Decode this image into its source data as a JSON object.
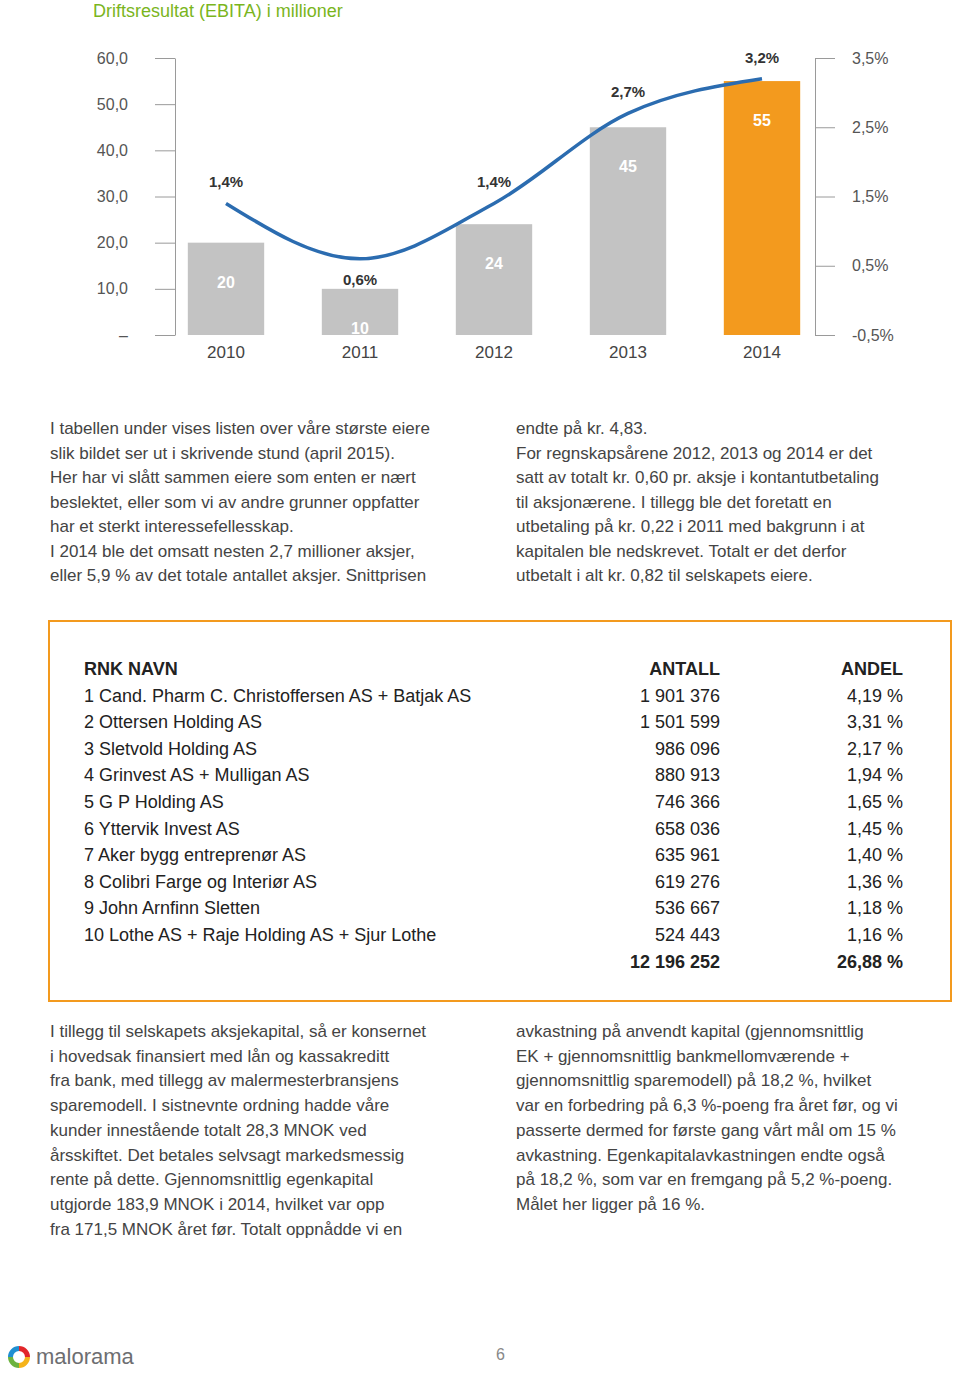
{
  "chart_data": {
    "type": "bar",
    "title": "Driftsresultat (EBITA) i millioner",
    "categories": [
      "2010",
      "2011",
      "2012",
      "2013",
      "2014"
    ],
    "values": [
      20,
      10,
      24,
      45,
      55
    ],
    "colors": [
      "#c3c3c3",
      "#c3c3c3",
      "#c3c3c3",
      "#c3c3c3",
      "#f39a1e"
    ],
    "data_labels": true,
    "ylim": [
      0,
      60
    ],
    "yticks": [
      {
        "value": 0,
        "label": "–"
      },
      {
        "value": 10,
        "label": "10,0"
      },
      {
        "value": 20,
        "label": "20,0"
      },
      {
        "value": 30,
        "label": "30,0"
      },
      {
        "value": 40,
        "label": "40,0"
      },
      {
        "value": 50,
        "label": "50,0"
      },
      {
        "value": 60,
        "label": "60,0"
      }
    ],
    "y2lim": [
      -0.5,
      3.5
    ],
    "y2ticks": [
      {
        "value": -0.5,
        "label": "-0,5%"
      },
      {
        "value": 0.5,
        "label": "0,5%"
      },
      {
        "value": 1.5,
        "label": "1,5%"
      },
      {
        "value": 2.5,
        "label": "2,5%"
      },
      {
        "value": 3.5,
        "label": "3,5%"
      }
    ],
    "series": [
      {
        "type": "line",
        "axis": "y2",
        "color": "#2b6cb0",
        "values": [
          1.4,
          0.6,
          1.4,
          2.7,
          3.2
        ],
        "value_labels": [
          "1,4%",
          "0,6%",
          "1,4%",
          "2,7%",
          "3,2%"
        ]
      }
    ]
  },
  "text": {
    "intro_left": [
      "I tabellen under vises listen over våre største eiere",
      "slik bildet ser ut i skrivende stund (april 2015).",
      "Her har vi slått sammen eiere som enten er nært",
      "beslektet, eller som vi av andre grunner oppfatter",
      "har et sterkt interessefellesskap.",
      "I 2014 ble det omsatt nesten 2,7 millioner aksjer,",
      "eller 5,9 % av det totale antallet aksjer. Snittprisen"
    ],
    "intro_right": [
      "endte på kr. 4,83.",
      "For regnskapsårene 2012, 2013 og 2014 er det",
      "satt av totalt kr. 0,60 pr. aksje i kontantutbetaling",
      "til aksjonærene. I tillegg ble det foretatt en",
      "utbetaling på kr. 0,22 i 2011 med bakgrunn i at",
      "kapitalen ble nedskrevet. Totalt er det derfor",
      "utbetalt i alt kr. 0,82 til selskapets eiere."
    ],
    "body_left": [
      "I tillegg til selskapets aksjekapital, så er konsernet",
      "i hovedsak finansiert med lån og kassakreditt",
      "fra bank, med tillegg av malermesterbransjens",
      "sparemodell. I sistnevnte ordning hadde våre",
      "kunder innestående totalt 28,3 MNOK ved",
      "årsskiftet. Det betales selvsagt markedsmessig",
      "rente på dette. Gjennomsnittlig egenkapital",
      "utgjorde 183,9 MNOK i 2014, hvilket var opp",
      "fra 171,5 MNOK året før. Totalt oppnådde vi en"
    ],
    "body_right": [
      "avkastning på anvendt kapital (gjennomsnittlig",
      "EK + gjennomsnittlig bankmellomværende +",
      "gjennomsnittlig sparemodell) på 18,2 %, hvilket",
      "var en forbedring på 6,3 %-poeng fra året før, og vi",
      "passerte dermed for første gang vårt mål om 15 %",
      "avkastning. Egenkapitalavkastningen endte også",
      "på 18,2 %, som var en fremgang på 5,2 %-poeng.",
      "Målet her ligger på 16 %."
    ]
  },
  "table": {
    "header": [
      "RNK NAVN",
      "ANTALL",
      "ANDEL"
    ],
    "rows": [
      [
        "1 Cand. Pharm C. Christoffersen AS + Batjak AS",
        "1 901 376",
        "4,19 %"
      ],
      [
        "2 Ottersen Holding AS",
        "1 501 599",
        "3,31 %"
      ],
      [
        "3 Sletvold Holding AS",
        "986 096",
        "2,17 %"
      ],
      [
        "4 Grinvest AS + Mulligan AS",
        "880 913",
        "1,94 %"
      ],
      [
        "5 G P Holding AS",
        "746 366",
        "1,65 %"
      ],
      [
        "6 Yttervik Invest AS",
        "658 036",
        "1,45 %"
      ],
      [
        "7 Aker bygg entreprenør AS",
        "635 961",
        "1,40 %"
      ],
      [
        "8 Colibri Farge og Interiør AS",
        "619 276",
        "1,36 %"
      ],
      [
        "9 John Arnfinn Sletten",
        "536 667",
        "1,18 %"
      ],
      [
        "10 Lothe AS + Raje Holding AS + Sjur Lothe",
        "524 443",
        "1,16 %"
      ]
    ],
    "total": [
      "12 196 252",
      "26,88 %"
    ]
  },
  "footer": {
    "logo": "malorama",
    "page": "6"
  }
}
